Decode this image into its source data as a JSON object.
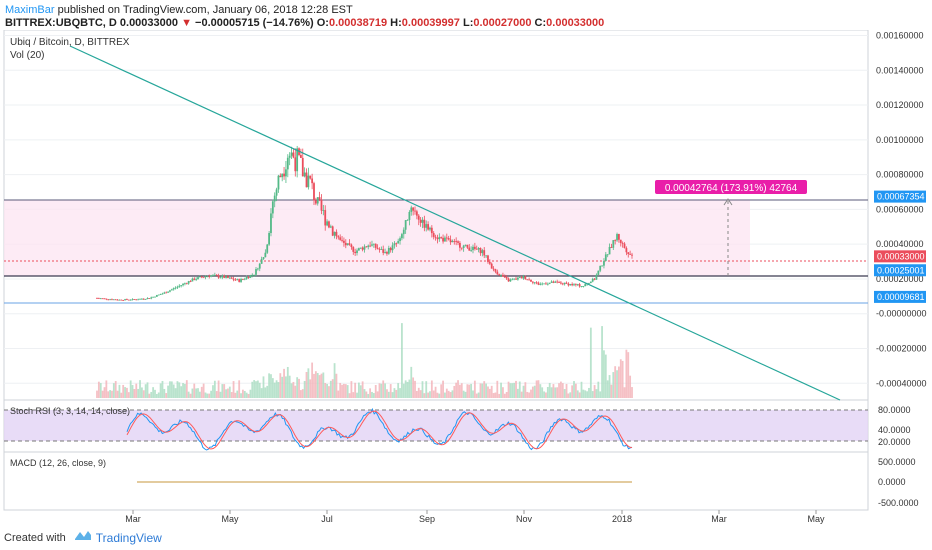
{
  "header": {
    "author": "MaximBar",
    "published_text": "published on TradingView.com, January 06, 2018 12:28 EST",
    "symbol": "BITTREX:UBQBTC, D",
    "close": "0.00033000",
    "change_arrow": "▼",
    "change": "−0.00005715 (−14.76%)",
    "o_label": "O:",
    "o": "0.00038719",
    "h_label": "H:",
    "h": "0.00039997",
    "l_label": "L:",
    "l": "0.00027000",
    "c_label": "C:",
    "c": "0.00033000"
  },
  "chart_title": "Ubiq / Bitcoin, D, BITTREX",
  "vol_label": "Vol (20)",
  "footer": {
    "created_with": "Created with",
    "brand": "TradingView"
  },
  "colors": {
    "up": "#53b987",
    "down": "#eb4d5c",
    "trendline": "#26a69a",
    "stoch_k": "#2196f3",
    "stoch_d": "#ff5a5a",
    "macd": "#ff9800",
    "measure": "#e91ea9"
  },
  "chart_data": [
    {
      "type": "candlestick",
      "title": "Ubiq / Bitcoin, D, BITTREX",
      "x_ticks": [
        "Mar",
        "May",
        "Jul",
        "Sep",
        "Nov",
        "2018",
        "Mar",
        "May"
      ],
      "y_ticks": [
        "0.00160000",
        "0.00140000",
        "0.00120000",
        "0.00100000",
        "0.00080000",
        "0.00060000",
        "0.00040000",
        "0.00020000",
        "-0.00000000",
        "-0.00020000",
        "-0.00040000"
      ],
      "ylim": [
        -0.00045,
        0.00162
      ],
      "series": [
        {
          "t": 0,
          "v": 9e-05
        },
        {
          "t": 5,
          "v": 8.5e-05
        },
        {
          "t": 12,
          "v": 8e-05
        },
        {
          "t": 20,
          "v": 8.2e-05
        },
        {
          "t": 28,
          "v": 9e-05
        },
        {
          "t": 36,
          "v": 0.00012
        },
        {
          "t": 44,
          "v": 0.00016
        },
        {
          "t": 52,
          "v": 0.0002
        },
        {
          "t": 60,
          "v": 0.00022
        },
        {
          "t": 68,
          "v": 0.00021
        },
        {
          "t": 76,
          "v": 0.00019
        },
        {
          "t": 84,
          "v": 0.00023
        },
        {
          "t": 90,
          "v": 0.00035
        },
        {
          "t": 94,
          "v": 0.00065
        },
        {
          "t": 98,
          "v": 0.0008
        },
        {
          "t": 102,
          "v": 0.00093
        },
        {
          "t": 106,
          "v": 0.0009
        },
        {
          "t": 110,
          "v": 0.00082
        },
        {
          "t": 114,
          "v": 0.00075
        },
        {
          "t": 118,
          "v": 0.00062
        },
        {
          "t": 124,
          "v": 0.00052
        },
        {
          "t": 130,
          "v": 0.00042
        },
        {
          "t": 138,
          "v": 0.00036
        },
        {
          "t": 146,
          "v": 0.0004
        },
        {
          "t": 154,
          "v": 0.00035
        },
        {
          "t": 162,
          "v": 0.00042
        },
        {
          "t": 168,
          "v": 0.00062
        },
        {
          "t": 174,
          "v": 0.00052
        },
        {
          "t": 182,
          "v": 0.00044
        },
        {
          "t": 190,
          "v": 0.00041
        },
        {
          "t": 198,
          "v": 0.00038
        },
        {
          "t": 206,
          "v": 0.00036
        },
        {
          "t": 212,
          "v": 0.00025
        },
        {
          "t": 220,
          "v": 0.00019
        },
        {
          "t": 228,
          "v": 0.00021
        },
        {
          "t": 236,
          "v": 0.00017
        },
        {
          "t": 244,
          "v": 0.00018
        },
        {
          "t": 252,
          "v": 0.00017
        },
        {
          "t": 260,
          "v": 0.00016
        },
        {
          "t": 266,
          "v": 0.0002
        },
        {
          "t": 272,
          "v": 0.00033
        },
        {
          "t": 278,
          "v": 0.00045
        },
        {
          "t": 282,
          "v": 0.00038
        },
        {
          "t": 286,
          "v": 0.00033
        }
      ],
      "price_labels": [
        {
          "value": 0.00067354,
          "label": "0.00067354",
          "color": "#2196f3"
        },
        {
          "value": 0.00033,
          "label": "0.00033000",
          "color": "#eb4d5c"
        },
        {
          "value": 0.00025001,
          "label": "0.00025001",
          "color": "#2196f3"
        },
        {
          "value": 9.681e-05,
          "label": "0.00009681",
          "color": "#2196f3"
        }
      ],
      "measure_label": "0.00042764 (173.91%) 42764"
    },
    {
      "type": "line",
      "title": "Stoch RSI (3, 3, 14, 14, close)",
      "y_ticks": [
        "80.0000",
        "40.0000",
        "20.0000"
      ],
      "bands": [
        80,
        20
      ]
    },
    {
      "type": "line",
      "title": "MACD (12, 26, close, 9)",
      "y_ticks": [
        "500.0000",
        "0.0000",
        "-500.0000"
      ],
      "series": [
        {
          "name": "MACD",
          "values": [
            0,
            0
          ]
        }
      ]
    }
  ]
}
